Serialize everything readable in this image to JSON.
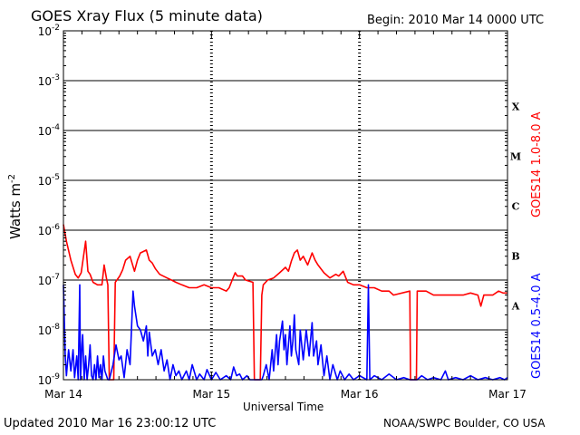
{
  "header": {
    "title": "GOES Xray Flux (5 minute data)",
    "begin": "Begin:  2010 Mar 14 0000 UTC"
  },
  "footer": {
    "updated": "Updated 2010 Mar 16 23:00:12 UTC",
    "credit": "NOAA/SWPC Boulder, CO USA"
  },
  "colors": {
    "long_channel": "#ff0000",
    "short_channel": "#0000ff",
    "grid": "#000000"
  },
  "chart_data": {
    "type": "line",
    "title": "GOES Xray Flux (5 minute data)",
    "xlabel": "Universal Time",
    "ylabel": "Watts m",
    "ylabel_sup": "-2",
    "yscale": "log",
    "ylim": [
      1e-09,
      0.01
    ],
    "xlim": [
      0,
      3
    ],
    "x_unit": "days since 2010 Mar 14 0000 UTC",
    "x_ticks": [
      {
        "x": 0,
        "label": "Mar 14"
      },
      {
        "x": 1,
        "label": "Mar 15"
      },
      {
        "x": 2,
        "label": "Mar 16"
      },
      {
        "x": 3,
        "label": "Mar 17"
      }
    ],
    "y_ticks": [
      {
        "exp": -9,
        "label": "10",
        "sup": "-9"
      },
      {
        "exp": -8,
        "label": "10",
        "sup": "-8"
      },
      {
        "exp": -7,
        "label": "10",
        "sup": "-7"
      },
      {
        "exp": -6,
        "label": "10",
        "sup": "-6"
      },
      {
        "exp": -5,
        "label": "10",
        "sup": "-5"
      },
      {
        "exp": -4,
        "label": "10",
        "sup": "-4"
      },
      {
        "exp": -3,
        "label": "10",
        "sup": "-3"
      },
      {
        "exp": -2,
        "label": "10",
        "sup": "-2"
      }
    ],
    "flare_classes": [
      {
        "label": "A",
        "exp": -7.5
      },
      {
        "label": "B",
        "exp": -6.5
      },
      {
        "label": "C",
        "exp": -5.5
      },
      {
        "label": "M",
        "exp": -4.5
      },
      {
        "label": "X",
        "exp": -3.5
      }
    ],
    "grid": true,
    "series": [
      {
        "name": "GOES14 1.0-8.0 A",
        "color": "#ff0000",
        "points": [
          [
            0.0,
            1.3e-06
          ],
          [
            0.02,
            6e-07
          ],
          [
            0.05,
            2.5e-07
          ],
          [
            0.08,
            1.3e-07
          ],
          [
            0.1,
            1.1e-07
          ],
          [
            0.12,
            1.4e-07
          ],
          [
            0.15,
            6e-07
          ],
          [
            0.165,
            1.5e-07
          ],
          [
            0.18,
            1.3e-07
          ],
          [
            0.2,
            9e-08
          ],
          [
            0.23,
            8e-08
          ],
          [
            0.26,
            8e-08
          ],
          [
            0.275,
            2e-07
          ],
          [
            0.29,
            1.1e-07
          ],
          [
            0.3,
            8e-08
          ],
          [
            0.31,
            1e-09
          ],
          [
            0.34,
            1e-09
          ],
          [
            0.35,
            9e-08
          ],
          [
            0.38,
            1.2e-07
          ],
          [
            0.4,
            1.6e-07
          ],
          [
            0.42,
            2.5e-07
          ],
          [
            0.45,
            3e-07
          ],
          [
            0.48,
            1.5e-07
          ],
          [
            0.5,
            2.5e-07
          ],
          [
            0.52,
            3.5e-07
          ],
          [
            0.56,
            4e-07
          ],
          [
            0.58,
            2.5e-07
          ],
          [
            0.6,
            2.2e-07
          ],
          [
            0.62,
            1.7e-07
          ],
          [
            0.65,
            1.3e-07
          ],
          [
            0.7,
            1.1e-07
          ],
          [
            0.73,
            1e-07
          ],
          [
            0.76,
            9e-08
          ],
          [
            0.8,
            8e-08
          ],
          [
            0.85,
            7e-08
          ],
          [
            0.9,
            7e-08
          ],
          [
            0.95,
            8e-08
          ],
          [
            1.0,
            7e-08
          ],
          [
            1.05,
            7e-08
          ],
          [
            1.1,
            6e-08
          ],
          [
            1.12,
            7e-08
          ],
          [
            1.14,
            1e-07
          ],
          [
            1.16,
            1.4e-07
          ],
          [
            1.175,
            1.2e-07
          ],
          [
            1.21,
            1.2e-07
          ],
          [
            1.23,
            1e-07
          ],
          [
            1.28,
            9e-08
          ],
          [
            1.29,
            1e-09
          ],
          [
            1.33,
            1e-09
          ],
          [
            1.34,
            5e-08
          ],
          [
            1.35,
            8e-08
          ],
          [
            1.38,
            1e-07
          ],
          [
            1.42,
            1.1e-07
          ],
          [
            1.46,
            1.4e-07
          ],
          [
            1.5,
            1.8e-07
          ],
          [
            1.52,
            1.5e-07
          ],
          [
            1.54,
            2.4e-07
          ],
          [
            1.56,
            3.5e-07
          ],
          [
            1.58,
            4e-07
          ],
          [
            1.6,
            2.5e-07
          ],
          [
            1.62,
            3e-07
          ],
          [
            1.65,
            2e-07
          ],
          [
            1.68,
            3.5e-07
          ],
          [
            1.7,
            2.5e-07
          ],
          [
            1.72,
            2e-07
          ],
          [
            1.76,
            1.4e-07
          ],
          [
            1.8,
            1.1e-07
          ],
          [
            1.84,
            1.3e-07
          ],
          [
            1.86,
            1.2e-07
          ],
          [
            1.89,
            1.5e-07
          ],
          [
            1.92,
            9e-08
          ],
          [
            1.96,
            8e-08
          ],
          [
            2.0,
            8e-08
          ],
          [
            2.05,
            7e-08
          ],
          [
            2.1,
            7e-08
          ],
          [
            2.15,
            6e-08
          ],
          [
            2.2,
            6e-08
          ],
          [
            2.23,
            5e-08
          ],
          [
            2.34,
            6e-08
          ],
          [
            2.345,
            1e-09
          ],
          [
            2.385,
            1e-09
          ],
          [
            2.39,
            6e-08
          ],
          [
            2.45,
            6e-08
          ],
          [
            2.5,
            5e-08
          ],
          [
            2.55,
            5e-08
          ],
          [
            2.6,
            5e-08
          ],
          [
            2.65,
            5e-08
          ],
          [
            2.7,
            5e-08
          ],
          [
            2.75,
            5.5e-08
          ],
          [
            2.8,
            5e-08
          ],
          [
            2.82,
            3e-08
          ],
          [
            2.84,
            5e-08
          ],
          [
            2.9,
            5e-08
          ],
          [
            2.94,
            6e-08
          ],
          [
            2.97,
            5.5e-08
          ],
          [
            3.0,
            5.5e-08
          ]
        ]
      },
      {
        "name": "GOES14 0.5-4.0 A",
        "color": "#0000ff",
        "points": [
          [
            0.0,
            8e-08
          ],
          [
            0.012,
            3e-09
          ],
          [
            0.02,
            1.2e-09
          ],
          [
            0.035,
            4e-09
          ],
          [
            0.05,
            1.5e-09
          ],
          [
            0.065,
            4e-09
          ],
          [
            0.075,
            1.1e-09
          ],
          [
            0.09,
            3e-09
          ],
          [
            0.1,
            1e-09
          ],
          [
            0.11,
            8e-08
          ],
          [
            0.115,
            1e-09
          ],
          [
            0.125,
            5e-09
          ],
          [
            0.13,
            8e-09
          ],
          [
            0.14,
            1e-09
          ],
          [
            0.15,
            3e-09
          ],
          [
            0.16,
            1e-09
          ],
          [
            0.17,
            2e-09
          ],
          [
            0.18,
            5e-09
          ],
          [
            0.19,
            1.2e-09
          ],
          [
            0.2,
            1e-09
          ],
          [
            0.21,
            2e-09
          ],
          [
            0.22,
            1e-09
          ],
          [
            0.23,
            3e-09
          ],
          [
            0.24,
            1.1e-09
          ],
          [
            0.25,
            2e-09
          ],
          [
            0.26,
            1e-09
          ],
          [
            0.27,
            3e-09
          ],
          [
            0.28,
            1.5e-09
          ],
          [
            0.3,
            1e-09
          ],
          [
            0.31,
            1e-09
          ],
          [
            0.335,
            2e-09
          ],
          [
            0.355,
            5e-09
          ],
          [
            0.375,
            2.5e-09
          ],
          [
            0.39,
            3e-09
          ],
          [
            0.41,
            1.1e-09
          ],
          [
            0.43,
            4e-09
          ],
          [
            0.45,
            2e-09
          ],
          [
            0.47,
            6e-08
          ],
          [
            0.48,
            3e-08
          ],
          [
            0.5,
            1.2e-08
          ],
          [
            0.52,
            1e-08
          ],
          [
            0.54,
            6e-09
          ],
          [
            0.56,
            1.2e-08
          ],
          [
            0.57,
            3e-09
          ],
          [
            0.58,
            9e-09
          ],
          [
            0.6,
            3e-09
          ],
          [
            0.62,
            4e-09
          ],
          [
            0.64,
            2e-09
          ],
          [
            0.66,
            4e-09
          ],
          [
            0.68,
            1.5e-09
          ],
          [
            0.7,
            2.5e-09
          ],
          [
            0.72,
            1e-09
          ],
          [
            0.74,
            2e-09
          ],
          [
            0.76,
            1.2e-09
          ],
          [
            0.78,
            1.5e-09
          ],
          [
            0.8,
            1e-09
          ],
          [
            0.83,
            1.5e-09
          ],
          [
            0.85,
            1e-09
          ],
          [
            0.87,
            2e-09
          ],
          [
            0.9,
            1e-09
          ],
          [
            0.92,
            1.3e-09
          ],
          [
            0.95,
            1e-09
          ],
          [
            0.97,
            1.6e-09
          ],
          [
            1.0,
            1e-09
          ],
          [
            1.03,
            1.4e-09
          ],
          [
            1.06,
            1e-09
          ],
          [
            1.1,
            1.2e-09
          ],
          [
            1.13,
            1e-09
          ],
          [
            1.15,
            1.8e-09
          ],
          [
            1.17,
            1.2e-09
          ],
          [
            1.19,
            1.3e-09
          ],
          [
            1.21,
            1e-09
          ],
          [
            1.24,
            1.2e-09
          ],
          [
            1.26,
            1e-09
          ],
          [
            1.28,
            1e-09
          ],
          [
            1.3,
            1e-09
          ],
          [
            1.34,
            1e-09
          ],
          [
            1.35,
            1.2e-09
          ],
          [
            1.37,
            2e-09
          ],
          [
            1.39,
            1e-09
          ],
          [
            1.41,
            4e-09
          ],
          [
            1.42,
            1.5e-09
          ],
          [
            1.44,
            8e-09
          ],
          [
            1.45,
            2e-09
          ],
          [
            1.46,
            6e-09
          ],
          [
            1.48,
            1.5e-08
          ],
          [
            1.49,
            4e-09
          ],
          [
            1.5,
            8e-09
          ],
          [
            1.51,
            2e-09
          ],
          [
            1.53,
            1.2e-08
          ],
          [
            1.54,
            3e-09
          ],
          [
            1.55,
            6e-09
          ],
          [
            1.56,
            2e-08
          ],
          [
            1.57,
            4e-09
          ],
          [
            1.59,
            2e-09
          ],
          [
            1.6,
            1e-08
          ],
          [
            1.62,
            2.5e-09
          ],
          [
            1.64,
            1e-08
          ],
          [
            1.66,
            3e-09
          ],
          [
            1.68,
            1.4e-08
          ],
          [
            1.69,
            3e-09
          ],
          [
            1.71,
            6e-09
          ],
          [
            1.72,
            2e-09
          ],
          [
            1.74,
            5e-09
          ],
          [
            1.76,
            1.2e-09
          ],
          [
            1.78,
            3e-09
          ],
          [
            1.8,
            1e-09
          ],
          [
            1.82,
            2e-09
          ],
          [
            1.85,
            1e-09
          ],
          [
            1.87,
            1.5e-09
          ],
          [
            1.9,
            1e-09
          ],
          [
            1.93,
            1.3e-09
          ],
          [
            1.96,
            1e-09
          ],
          [
            2.0,
            1.2e-09
          ],
          [
            2.05,
            1e-09
          ],
          [
            2.06,
            8e-08
          ],
          [
            2.07,
            1e-09
          ],
          [
            2.1,
            1.2e-09
          ],
          [
            2.15,
            1e-09
          ],
          [
            2.2,
            1.3e-09
          ],
          [
            2.25,
            1e-09
          ],
          [
            2.3,
            1.1e-09
          ],
          [
            2.34,
            1e-09
          ],
          [
            2.39,
            1e-09
          ],
          [
            2.42,
            1.2e-09
          ],
          [
            2.46,
            1e-09
          ],
          [
            2.5,
            1.1e-09
          ],
          [
            2.55,
            1e-09
          ],
          [
            2.58,
            1.5e-09
          ],
          [
            2.6,
            1e-09
          ],
          [
            2.65,
            1.1e-09
          ],
          [
            2.7,
            1e-09
          ],
          [
            2.75,
            1.2e-09
          ],
          [
            2.8,
            1e-09
          ],
          [
            2.85,
            1.1e-09
          ],
          [
            2.9,
            1e-09
          ],
          [
            2.95,
            1.1e-09
          ],
          [
            2.98,
            1e-09
          ],
          [
            3.0,
            1.1e-09
          ]
        ]
      }
    ]
  }
}
